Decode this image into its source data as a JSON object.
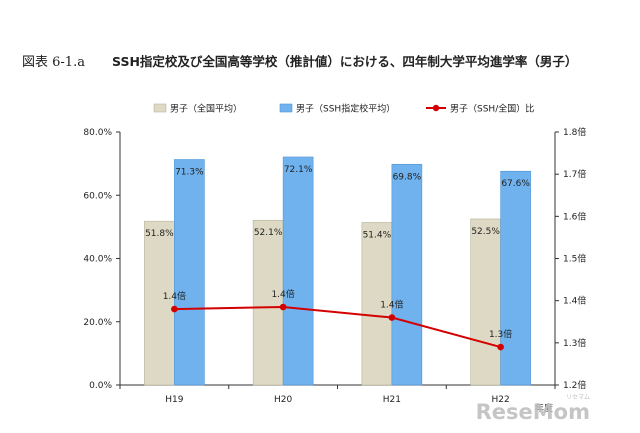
{
  "figure": {
    "label": "図表 6-1.a",
    "title": "SSH指定校及び全国高等学校（推計値）における、四年制大学平均進学率（男子）"
  },
  "chart_data": {
    "type": "bar",
    "categories": [
      "H19",
      "H20",
      "H21",
      "H22"
    ],
    "series": [
      {
        "name": "男子（全国平均）",
        "type": "bar",
        "axis": "left",
        "values": [
          51.8,
          52.1,
          51.4,
          52.5
        ],
        "labels": [
          "51.8%",
          "52.1%",
          "51.4%",
          "52.5%"
        ],
        "color": "#ddd9c4"
      },
      {
        "name": "男子（SSH指定校平均）",
        "type": "bar",
        "axis": "left",
        "values": [
          71.3,
          72.1,
          69.8,
          67.6
        ],
        "labels": [
          "71.3%",
          "72.1%",
          "69.8%",
          "67.6%"
        ],
        "color": "#6fb2ee"
      },
      {
        "name": "男子（SSH/全国）比",
        "type": "line",
        "axis": "right",
        "values": [
          1.38,
          1.385,
          1.36,
          1.29
        ],
        "labels": [
          "1.4倍",
          "1.4倍",
          "1.4倍",
          "1.3倍"
        ],
        "color": "#d40000"
      }
    ],
    "y_left": {
      "min": 0,
      "max": 80,
      "ticks": [
        0,
        20,
        40,
        60,
        80
      ],
      "tick_labels": [
        "0.0%",
        "20.0%",
        "40.0%",
        "60.0%",
        "80.0%"
      ]
    },
    "y_right": {
      "min": 1.2,
      "max": 1.8,
      "ticks": [
        1.2,
        1.3,
        1.4,
        1.5,
        1.6,
        1.7,
        1.8
      ],
      "tick_labels": [
        "1.2倍",
        "1.3倍",
        "1.4倍",
        "1.5倍",
        "1.6倍",
        "1.7倍",
        "1.8倍"
      ]
    },
    "xlabel": "年度",
    "legend_position": "top",
    "grid": false
  },
  "watermark": {
    "main": "ReseMom",
    "sub": "リセマム"
  }
}
